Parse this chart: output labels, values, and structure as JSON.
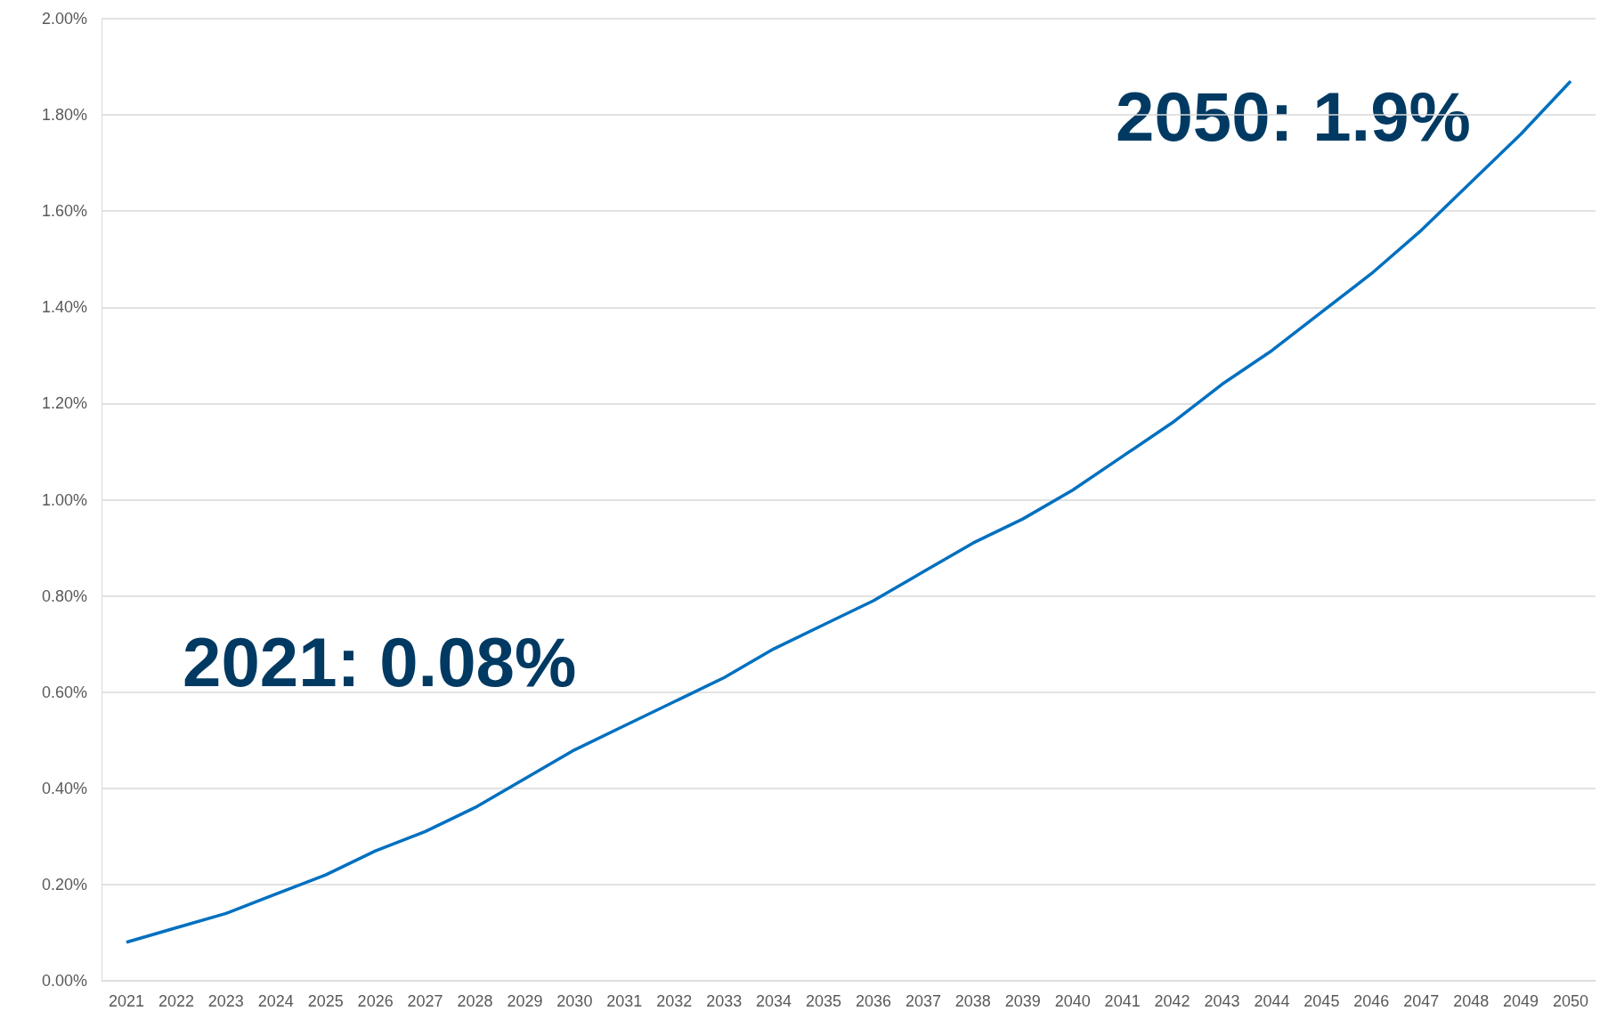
{
  "chart_data": {
    "type": "line",
    "categories": [
      "2021",
      "2022",
      "2023",
      "2024",
      "2025",
      "2026",
      "2027",
      "2028",
      "2029",
      "2030",
      "2031",
      "2032",
      "2033",
      "2034",
      "2035",
      "2036",
      "2037",
      "2038",
      "2039",
      "2040",
      "2041",
      "2042",
      "2043",
      "2044",
      "2045",
      "2046",
      "2047",
      "2048",
      "2049",
      "2050"
    ],
    "series": [
      {
        "color": "#0070c0",
        "values": [
          0.08,
          0.11,
          0.14,
          0.18,
          0.22,
          0.27,
          0.31,
          0.36,
          0.42,
          0.48,
          0.53,
          0.58,
          0.63,
          0.69,
          0.74,
          0.79,
          0.85,
          0.91,
          0.96,
          1.02,
          1.09,
          1.16,
          1.24,
          1.31,
          1.39,
          1.47,
          1.56,
          1.66,
          1.76,
          1.87
        ]
      }
    ],
    "ylim": [
      0,
      2
    ],
    "yticks": [
      {
        "value": 0,
        "label": "0.00%"
      },
      {
        "value": 0.2,
        "label": "0.20%"
      },
      {
        "value": 0.4,
        "label": "0.40%"
      },
      {
        "value": 0.6,
        "label": "0.60%"
      },
      {
        "value": 0.8,
        "label": "0.80%"
      },
      {
        "value": 1,
        "label": "1.00%"
      },
      {
        "value": 1.2,
        "label": "1.20%"
      },
      {
        "value": 1.4,
        "label": "1.40%"
      },
      {
        "value": 1.6,
        "label": "1.60%"
      },
      {
        "value": 1.8,
        "label": "1.80%"
      },
      {
        "value": 2,
        "label": "2.00%"
      }
    ],
    "grid": "y",
    "marker": "none",
    "line_style": "solid",
    "annotations": [
      "2021: 0.08%",
      "2050: 1.9%"
    ]
  }
}
